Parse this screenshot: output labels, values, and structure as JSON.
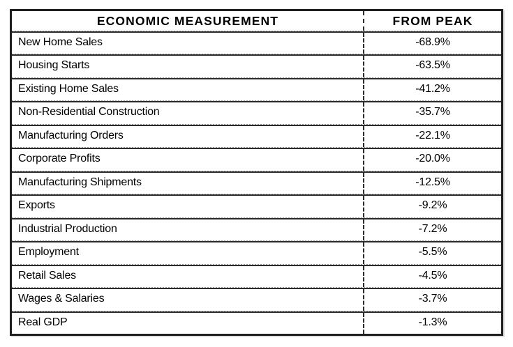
{
  "colors": {
    "border_dark": "#1e1e1e",
    "separator_solid": "#2b2b2b",
    "separator_dotted": "#9b9b9b",
    "text": "#000000",
    "background": "#ffffff"
  },
  "table": {
    "header": {
      "measurement": "ECONOMIC MEASUREMENT",
      "from_peak": "FROM PEAK"
    },
    "rows": [
      {
        "label": "New Home Sales",
        "value": "-68.9%"
      },
      {
        "label": "Housing Starts",
        "value": "-63.5%"
      },
      {
        "label": "Existing Home Sales",
        "value": "-41.2%"
      },
      {
        "label": "Non-Residential Construction",
        "value": "-35.7%"
      },
      {
        "label": "Manufacturing Orders",
        "value": "-22.1%"
      },
      {
        "label": "Corporate Profits",
        "value": "-20.0%"
      },
      {
        "label": "Manufacturing Shipments",
        "value": "-12.5%"
      },
      {
        "label": "Exports",
        "value": "-9.2%"
      },
      {
        "label": "Industrial Production",
        "value": "-7.2%"
      },
      {
        "label": "Employment",
        "value": "-5.5%"
      },
      {
        "label": "Retail Sales",
        "value": "-4.5%"
      },
      {
        "label": "Wages & Salaries",
        "value": "-3.7%"
      },
      {
        "label": "Real GDP",
        "value": "-1.3%"
      }
    ]
  },
  "chart_data": {
    "type": "table",
    "title": "",
    "columns": [
      "ECONOMIC MEASUREMENT",
      "FROM PEAK"
    ],
    "rows": [
      [
        "New Home Sales",
        "-68.9%"
      ],
      [
        "Housing Starts",
        "-63.5%"
      ],
      [
        "Existing Home Sales",
        "-41.2%"
      ],
      [
        "Non-Residential Construction",
        "-35.7%"
      ],
      [
        "Manufacturing Orders",
        "-22.1%"
      ],
      [
        "Corporate Profits",
        "-20.0%"
      ],
      [
        "Manufacturing Shipments",
        "-12.5%"
      ],
      [
        "Exports",
        "-9.2%"
      ],
      [
        "Industrial Production",
        "-7.2%"
      ],
      [
        "Employment",
        "-5.5%"
      ],
      [
        "Retail Sales",
        "-4.5%"
      ],
      [
        "Wages & Salaries",
        "-3.7%"
      ],
      [
        "Real GDP",
        "-1.3%"
      ]
    ],
    "values_numeric": [
      -68.9,
      -63.5,
      -41.2,
      -35.7,
      -22.1,
      -20.0,
      -12.5,
      -9.2,
      -7.2,
      -5.5,
      -4.5,
      -3.7,
      -1.3
    ]
  }
}
